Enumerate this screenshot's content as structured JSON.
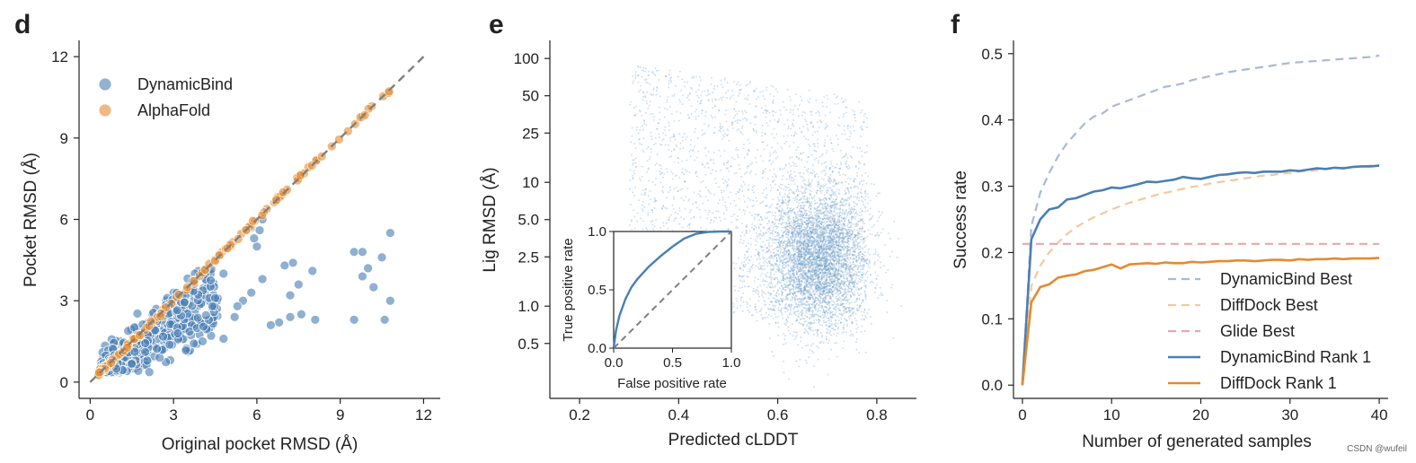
{
  "watermark": "CSDN @wufeil",
  "colors": {
    "blue": "#4a7fb5",
    "orange": "#e68a2e",
    "light_blue": "#aab9d6",
    "light_orange": "#f4c99e",
    "pink": "#eaa6ad",
    "grey": "#808080",
    "scatter_blue": "#6a9ac9"
  },
  "chart_data": [
    {
      "panel": "d",
      "type": "scatter",
      "xlabel": "Original pocket RMSD (Å)",
      "ylabel": "Pocket RMSD (Å)",
      "xlim": [
        -0.4,
        12.6
      ],
      "ylim": [
        -0.6,
        12.6
      ],
      "xticks": [
        0,
        3,
        6,
        9,
        12
      ],
      "yticks": [
        0,
        3,
        6,
        9,
        12
      ],
      "diagonal": true,
      "legend": {
        "location": "top-left"
      },
      "series": [
        {
          "name": "DynamicBind",
          "color": "#4a7fb5",
          "points": [
            [
              10.8,
              5.5
            ],
            [
              10.5,
              4.6
            ],
            [
              10.8,
              3.0
            ],
            [
              10.6,
              2.3
            ],
            [
              9.5,
              2.3
            ],
            [
              9.8,
              3.9
            ],
            [
              9.5,
              4.8
            ],
            [
              9.8,
              4.8
            ],
            [
              10.0,
              4.2
            ],
            [
              10.2,
              3.5
            ],
            [
              8.0,
              4.1
            ],
            [
              8.1,
              2.3
            ],
            [
              7.3,
              4.4
            ],
            [
              7.0,
              4.3
            ],
            [
              7.5,
              3.6
            ],
            [
              7.2,
              3.2
            ],
            [
              7.6,
              2.5
            ],
            [
              7.2,
              2.4
            ],
            [
              6.8,
              2.2
            ],
            [
              6.5,
              2.1
            ],
            [
              6.2,
              3.8
            ],
            [
              5.8,
              3.3
            ],
            [
              5.5,
              3.0
            ],
            [
              5.3,
              2.8
            ],
            [
              5.2,
              2.4
            ],
            [
              4.8,
              1.6
            ],
            [
              6.0,
              5.0
            ],
            [
              5.8,
              5.7
            ],
            [
              6.2,
              6.0
            ],
            [
              6.1,
              5.6
            ],
            [
              5.9,
              5.3
            ],
            [
              4.8,
              4.0
            ],
            [
              4.5,
              3.1
            ],
            [
              4.4,
              2.8
            ]
          ],
          "cluster_points": 420
        },
        {
          "name": "AlphaFold",
          "color": "#e68a2e",
          "range": [
            0.3,
            10.9
          ],
          "n_points": 140
        }
      ]
    },
    {
      "panel": "e",
      "type": "scatter",
      "xlabel": "Predicted cLDDT",
      "ylabel": "Lig RMSD (Å)",
      "yscale": "log",
      "xlim": [
        0.14,
        0.88
      ],
      "ylim": [
        0.18,
        140
      ],
      "xticks": [
        0.2,
        0.4,
        0.6,
        0.8
      ],
      "yticks": [
        0.5,
        1.0,
        2.5,
        5.0,
        10,
        25,
        50,
        100
      ],
      "density_peak": {
        "x": 0.68,
        "y": 2.5
      },
      "n_points": 7000,
      "inset": {
        "type": "line",
        "xlabel": "False positive rate",
        "ylabel": "True positive rate",
        "xticks": [
          0.0,
          0.5,
          1.0
        ],
        "yticks": [
          0.0,
          0.5,
          1.0
        ],
        "roc_x": [
          0.0,
          0.02,
          0.05,
          0.1,
          0.15,
          0.2,
          0.3,
          0.4,
          0.5,
          0.6,
          0.7,
          0.8,
          0.9,
          1.0
        ],
        "roc_y": [
          0.0,
          0.15,
          0.28,
          0.42,
          0.52,
          0.59,
          0.7,
          0.79,
          0.87,
          0.94,
          0.98,
          0.995,
          1.0,
          1.0
        ]
      }
    },
    {
      "panel": "f",
      "type": "line",
      "xlabel": "Number of generated samples",
      "ylabel": "Success rate",
      "xlim": [
        -1,
        41
      ],
      "ylim": [
        -0.02,
        0.52
      ],
      "xticks": [
        0,
        10,
        20,
        30,
        40
      ],
      "yticks": [
        0.0,
        0.1,
        0.2,
        0.3,
        0.4,
        0.5
      ],
      "legend": {
        "location": "bottom-right"
      },
      "x": [
        0,
        1,
        2,
        3,
        4,
        5,
        6,
        7,
        8,
        9,
        10,
        11,
        12,
        13,
        14,
        15,
        16,
        17,
        18,
        19,
        20,
        21,
        22,
        23,
        24,
        25,
        26,
        27,
        28,
        29,
        30,
        31,
        32,
        33,
        34,
        35,
        36,
        37,
        38,
        39,
        40
      ],
      "series": [
        {
          "name": "DynamicBind Best",
          "color": "#aab9d6",
          "dash": true,
          "values": [
            0.0,
            0.24,
            0.29,
            0.32,
            0.345,
            0.365,
            0.38,
            0.395,
            0.405,
            0.41,
            0.42,
            0.425,
            0.43,
            0.435,
            0.44,
            0.445,
            0.45,
            0.452,
            0.455,
            0.46,
            0.463,
            0.466,
            0.469,
            0.472,
            0.474,
            0.476,
            0.478,
            0.48,
            0.482,
            0.484,
            0.486,
            0.487,
            0.488,
            0.489,
            0.49,
            0.491,
            0.492,
            0.493,
            0.494,
            0.495,
            0.497
          ]
        },
        {
          "name": "DiffDock Best",
          "color": "#f4c99e",
          "dash": true,
          "values": [
            0.0,
            0.15,
            0.18,
            0.2,
            0.215,
            0.228,
            0.238,
            0.246,
            0.253,
            0.259,
            0.265,
            0.27,
            0.275,
            0.279,
            0.283,
            0.287,
            0.29,
            0.293,
            0.296,
            0.299,
            0.301,
            0.304,
            0.306,
            0.308,
            0.31,
            0.312,
            0.314,
            0.316,
            0.317,
            0.319,
            0.32,
            0.322,
            0.323,
            0.324,
            0.326,
            0.327,
            0.328,
            0.329,
            0.33,
            0.331,
            0.332
          ]
        },
        {
          "name": "Glide Best",
          "color": "#eaa6ad",
          "dash": true,
          "values": [
            0.213,
            0.213,
            0.213,
            0.213,
            0.213,
            0.213,
            0.213,
            0.213,
            0.213,
            0.213,
            0.213,
            0.213,
            0.213,
            0.213,
            0.213,
            0.213,
            0.213,
            0.213,
            0.213,
            0.213,
            0.213,
            0.213,
            0.213,
            0.213,
            0.213,
            0.213,
            0.213,
            0.213,
            0.213,
            0.213,
            0.213,
            0.213,
            0.213,
            0.213,
            0.213,
            0.213,
            0.213,
            0.213,
            0.213,
            0.213,
            0.213
          ]
        },
        {
          "name": "DynamicBind Rank 1",
          "color": "#4a7fb5",
          "dash": false,
          "values": [
            0.0,
            0.22,
            0.25,
            0.265,
            0.268,
            0.28,
            0.282,
            0.287,
            0.292,
            0.294,
            0.298,
            0.297,
            0.3,
            0.303,
            0.307,
            0.306,
            0.308,
            0.31,
            0.314,
            0.312,
            0.311,
            0.314,
            0.317,
            0.318,
            0.32,
            0.321,
            0.32,
            0.322,
            0.322,
            0.322,
            0.324,
            0.323,
            0.325,
            0.327,
            0.326,
            0.328,
            0.327,
            0.329,
            0.33,
            0.33,
            0.331
          ]
        },
        {
          "name": "DiffDock Rank 1",
          "color": "#e68a2e",
          "dash": false,
          "values": [
            0.0,
            0.125,
            0.148,
            0.152,
            0.162,
            0.165,
            0.167,
            0.172,
            0.174,
            0.178,
            0.182,
            0.176,
            0.182,
            0.183,
            0.184,
            0.183,
            0.185,
            0.184,
            0.184,
            0.186,
            0.185,
            0.186,
            0.187,
            0.187,
            0.188,
            0.188,
            0.187,
            0.188,
            0.189,
            0.189,
            0.188,
            0.19,
            0.189,
            0.19,
            0.19,
            0.191,
            0.19,
            0.191,
            0.191,
            0.191,
            0.192
          ]
        }
      ]
    }
  ]
}
